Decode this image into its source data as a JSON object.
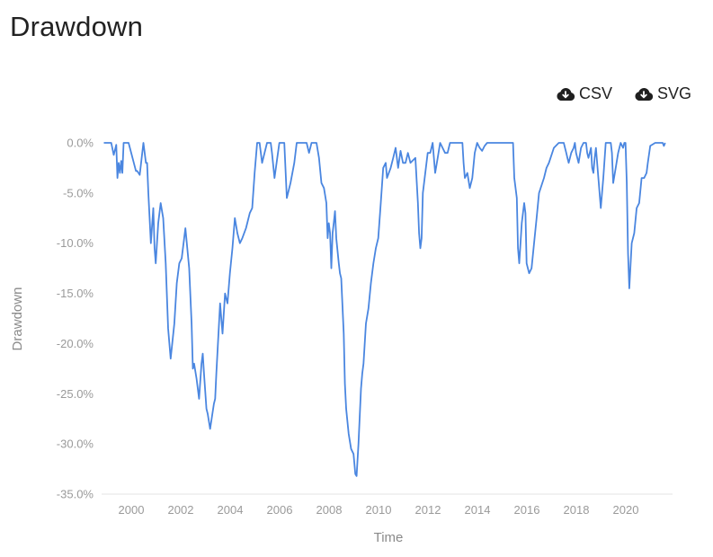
{
  "title": "Drawdown",
  "downloads": {
    "csv_label": "CSV",
    "svg_label": "SVG"
  },
  "colors": {
    "line": "#4a86e0",
    "axis_text": "#9a9a9a",
    "axis_line": "#e3e3e3"
  },
  "chart_data": {
    "type": "line",
    "title": "Drawdown",
    "xlabel": "Time",
    "ylabel": "Drawdown",
    "xlim": [
      1998.75,
      2021.75
    ],
    "ylim": [
      -35,
      0
    ],
    "grid": false,
    "legend": "none",
    "xticks": [
      2000,
      2002,
      2004,
      2006,
      2008,
      2010,
      2012,
      2014,
      2016,
      2018,
      2020
    ],
    "xtick_labels": [
      "2000",
      "2002",
      "2004",
      "2006",
      "2008",
      "2010",
      "2012",
      "2014",
      "2016",
      "2018",
      "2020"
    ],
    "yticks": [
      0,
      -5,
      -10,
      -15,
      -20,
      -25,
      -30,
      -35
    ],
    "ytick_labels": [
      "0.0%",
      "-5.0%",
      "-10.0%",
      "-15.0%",
      "-20.0%",
      "-25.0%",
      "-30.0%",
      "-35.0%"
    ],
    "series": [
      {
        "name": "Drawdown",
        "x": [
          1999.0,
          1999.3,
          1999.4,
          1999.5,
          1999.55,
          1999.6,
          1999.65,
          1999.7,
          1999.75,
          1999.8,
          1999.85,
          1999.9,
          1999.95,
          2000.0,
          2000.3,
          2000.35,
          2000.45,
          2000.6,
          2000.7,
          2000.75,
          2000.8,
          2000.9,
          2001.0,
          2001.05,
          2001.1,
          2001.2,
          2001.3,
          2001.4,
          2001.5,
          2001.6,
          2001.7,
          2001.85,
          2001.95,
          2002.05,
          2002.15,
          2002.3,
          2002.45,
          2002.55,
          2002.6,
          2002.65,
          2002.75,
          2002.85,
          2002.95,
          2003.0,
          2003.05,
          2003.15,
          2003.2,
          2003.3,
          2003.45,
          2003.5,
          2003.55,
          2003.7,
          2003.8,
          2003.9,
          2003.95,
          2004.0,
          2004.1,
          2004.2,
          2004.3,
          2004.4,
          2004.5,
          2004.6,
          2004.75,
          2004.9,
          2005.0,
          2005.1,
          2005.2,
          2005.3,
          2005.4,
          2005.6,
          2005.7,
          2005.75,
          2005.8,
          2005.9,
          2006.1,
          2006.2,
          2006.25,
          2006.3,
          2006.4,
          2006.55,
          2006.7,
          2006.8,
          2007.0,
          2007.1,
          2007.2,
          2007.3,
          2007.4,
          2007.5,
          2007.6,
          2007.7,
          2007.8,
          2007.9,
          2008.0,
          2008.05,
          2008.1,
          2008.15,
          2008.2,
          2008.25,
          2008.3,
          2008.35,
          2008.4,
          2008.5,
          2008.55,
          2008.6,
          2008.7,
          2008.75,
          2008.8,
          2008.9,
          2009.0,
          2009.1,
          2009.17,
          2009.22,
          2009.3,
          2009.4,
          2009.45,
          2009.5,
          2009.6,
          2009.7,
          2009.8,
          2009.9,
          2010.0,
          2010.1,
          2010.2,
          2010.3,
          2010.4,
          2010.45,
          2010.6,
          2010.7,
          2010.8,
          2010.9,
          2011.0,
          2011.1,
          2011.2,
          2011.3,
          2011.4,
          2011.6,
          2011.7,
          2011.75,
          2011.8,
          2011.85,
          2011.9,
          2012.0,
          2012.1,
          2012.2,
          2012.3,
          2012.35,
          2012.4,
          2012.5,
          2012.6,
          2012.8,
          2012.9,
          2013.0,
          2013.2,
          2013.4,
          2013.5,
          2013.55,
          2013.6,
          2013.7,
          2013.8,
          2013.9,
          2014.0,
          2014.1,
          2014.2,
          2014.3,
          2014.4,
          2014.5,
          2014.6,
          2014.7,
          2014.8,
          2014.9,
          2015.0,
          2015.2,
          2015.4,
          2015.5,
          2015.55,
          2015.6,
          2015.7,
          2015.75,
          2015.8,
          2015.9,
          2016.0,
          2016.05,
          2016.1,
          2016.2,
          2016.3,
          2016.4,
          2016.5,
          2016.6,
          2016.8,
          2016.9,
          2017.0,
          2017.2,
          2017.4,
          2017.5,
          2017.6,
          2017.7,
          2017.75,
          2017.8,
          2017.9,
          2018.0,
          2018.05,
          2018.1,
          2018.2,
          2018.3,
          2018.4,
          2018.5,
          2018.55,
          2018.6,
          2018.7,
          2018.75,
          2018.8,
          2018.85,
          2018.9,
          2019.0,
          2019.1,
          2019.2,
          2019.3,
          2019.4,
          2019.5,
          2019.55,
          2019.6,
          2019.7,
          2019.8,
          2019.9,
          2020.0,
          2020.05,
          2020.1,
          2020.15,
          2020.2,
          2020.25,
          2020.35,
          2020.45,
          2020.55,
          2020.65,
          2020.75,
          2020.85,
          2020.95,
          2021.0,
          2021.1,
          2021.3,
          2021.5,
          2021.6,
          2021.65,
          2021.7
        ],
        "values": [
          0.0,
          0.0,
          -1.2,
          -0.2,
          -3.5,
          -2.0,
          -3.0,
          -1.8,
          -3.0,
          0.0,
          0.0,
          0.0,
          0.0,
          0.0,
          -2.8,
          -2.8,
          -3.2,
          0.0,
          -2.0,
          -2.0,
          -5.0,
          -10.0,
          -6.5,
          -10.5,
          -12.0,
          -8.0,
          -6.0,
          -7.5,
          -12.0,
          -18.5,
          -21.5,
          -18.0,
          -14.0,
          -12.0,
          -11.5,
          -8.5,
          -12.5,
          -18.0,
          -22.5,
          -22.0,
          -23.5,
          -25.5,
          -22.0,
          -21.0,
          -23.0,
          -26.5,
          -27.0,
          -28.5,
          -26.0,
          -25.5,
          -23.0,
          -16.0,
          -19.0,
          -15.0,
          -15.5,
          -16.0,
          -13.0,
          -10.5,
          -7.5,
          -9.0,
          -10.0,
          -9.5,
          -8.5,
          -7.0,
          -6.5,
          -3.0,
          0.0,
          0.0,
          -2.0,
          0.0,
          0.0,
          0.0,
          -1.0,
          -3.5,
          0.0,
          0.0,
          0.0,
          0.0,
          -5.5,
          -4.0,
          -2.0,
          0.0,
          0.0,
          0.0,
          0.0,
          -1.0,
          0.0,
          0.0,
          0.0,
          -1.5,
          -4.0,
          -4.5,
          -6.0,
          -9.5,
          -8.0,
          -9.0,
          -12.5,
          -9.0,
          -8.0,
          -6.8,
          -9.5,
          -12.0,
          -13.0,
          -13.5,
          -19.0,
          -24.0,
          -26.5,
          -29.0,
          -30.5,
          -31.0,
          -33.0,
          -33.2,
          -30.0,
          -24.5,
          -23.0,
          -22.0,
          -18.0,
          -16.5,
          -14.0,
          -12.0,
          -10.5,
          -9.5,
          -6.0,
          -2.5,
          -2.0,
          -3.5,
          -2.5,
          -1.5,
          -0.5,
          -2.5,
          -0.8,
          -2.0,
          -2.0,
          -1.0,
          -2.0,
          -1.5,
          -6.0,
          -9.0,
          -10.5,
          -9.5,
          -5.0,
          -3.0,
          -1.0,
          -1.0,
          0.0,
          -1.5,
          -3.0,
          -1.5,
          0.0,
          -1.0,
          -1.0,
          0.0,
          0.0,
          0.0,
          0.0,
          -2.0,
          -3.5,
          -3.0,
          -4.5,
          -3.5,
          -1.0,
          0.0,
          -0.5,
          -0.8,
          -0.3,
          0.0,
          0.0,
          0.0,
          0.0,
          0.0,
          0.0,
          0.0,
          0.0,
          0.0,
          0.0,
          -3.5,
          -5.5,
          -10.5,
          -12.0,
          -8.0,
          -6.0,
          -7.0,
          -12.0,
          -13.0,
          -12.5,
          -10.0,
          -7.5,
          -5.0,
          -3.5,
          -2.5,
          -2.0,
          -0.5,
          0.0,
          0.0,
          0.0,
          -1.0,
          -1.5,
          -2.0,
          -1.0,
          -0.5,
          0.0,
          -1.0,
          -2.0,
          -0.5,
          0.0,
          0.0,
          -1.0,
          -1.5,
          -0.5,
          -2.5,
          -3.0,
          -1.5,
          -0.5,
          -3.5,
          -6.5,
          -3.5,
          0.0,
          0.0,
          0.0,
          -1.0,
          -4.0,
          -2.5,
          -1.0,
          0.0,
          -0.5,
          0.0,
          0.0,
          -4.0,
          -11.0,
          -14.5,
          -10.0,
          -9.0,
          -6.5,
          -6.0,
          -3.5,
          -3.5,
          -3.0,
          -2.0,
          -0.3,
          0.0,
          0.0,
          0.0,
          -0.3,
          0.0
        ]
      }
    ]
  }
}
